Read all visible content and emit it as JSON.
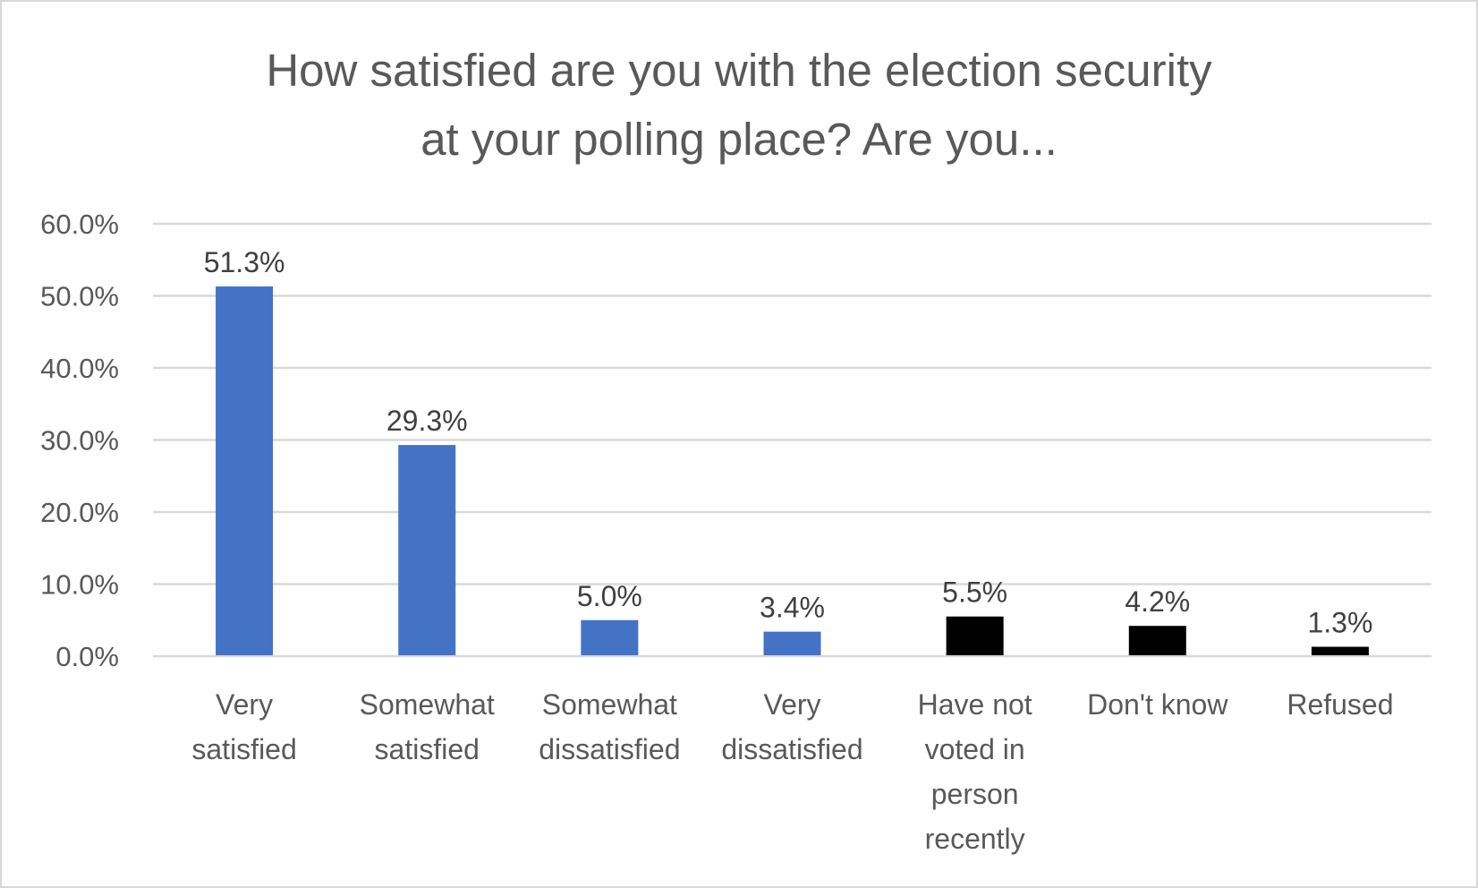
{
  "chart_data": {
    "type": "bar",
    "title": [
      "How satisfied are you with the election security",
      "at your polling place? Are you..."
    ],
    "xlabel": "",
    "ylabel": "",
    "ylim": [
      0,
      60
    ],
    "yticks": [
      "0.0%",
      "10.0%",
      "20.0%",
      "30.0%",
      "40.0%",
      "50.0%",
      "60.0%"
    ],
    "grid": true,
    "categories": [
      [
        "Very",
        "satisfied"
      ],
      [
        "Somewhat",
        "satisfied"
      ],
      [
        "Somewhat",
        "dissatisfied"
      ],
      [
        "Very",
        "dissatisfied"
      ],
      [
        "Have not",
        "voted in",
        "person",
        "recently"
      ],
      [
        "Don't know"
      ],
      [
        "Refused"
      ]
    ],
    "values": [
      51.3,
      29.3,
      5.0,
      3.4,
      5.5,
      4.2,
      1.3
    ],
    "data_labels": [
      "51.3%",
      "29.3%",
      "5.0%",
      "3.4%",
      "5.5%",
      "4.2%",
      "1.3%"
    ],
    "colors": [
      "#4472C4",
      "#4472C4",
      "#4472C4",
      "#4472C4",
      "#000000",
      "#000000",
      "#000000"
    ],
    "gridline_color": "#d9d9d9"
  }
}
